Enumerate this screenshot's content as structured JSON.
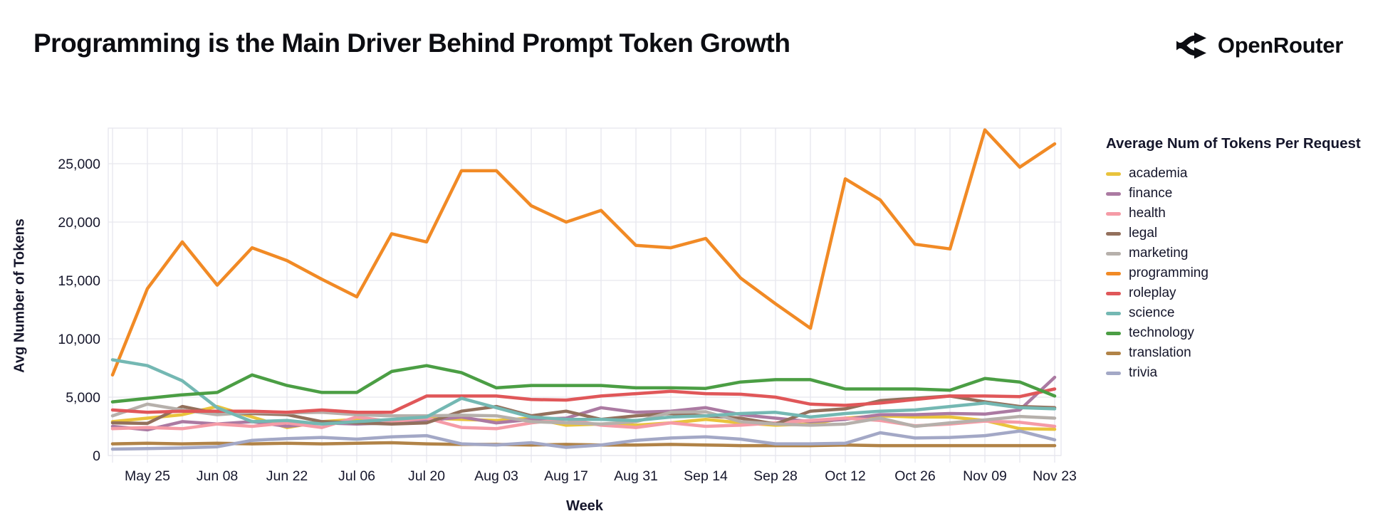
{
  "header": {
    "title": "Programming is the Main Driver Behind Prompt Token Growth",
    "logo_text": "OpenRouter"
  },
  "legend": {
    "title": "Average Num of Tokens Per Request"
  },
  "axes": {
    "xlabel": "Week",
    "ylabel": "Avg Number of Tokens"
  },
  "colors": {
    "grid": "#e6e6ee",
    "axis_text": "#15162b",
    "background": "#ffffff"
  },
  "chart_data": {
    "type": "line",
    "title": "Programming is the Main Driver Behind Prompt Token Growth",
    "xlabel": "Week",
    "ylabel": "Avg Number of Tokens",
    "legend_title": "Average Num of Tokens Per Request",
    "legend_position": "right",
    "grid": true,
    "ylim": [
      0,
      28050
    ],
    "y_ticks": [
      0,
      5000,
      10000,
      15000,
      20000,
      25000
    ],
    "y_tick_labels": [
      "0",
      "5,000",
      "10,000",
      "15,000",
      "20,000",
      "25,000"
    ],
    "x": [
      "May 18",
      "May 25",
      "Jun 01",
      "Jun 08",
      "Jun 15",
      "Jun 22",
      "Jun 29",
      "Jul 06",
      "Jul 13",
      "Jul 20",
      "Jul 27",
      "Aug 03",
      "Aug 10",
      "Aug 17",
      "Aug 24",
      "Aug 31",
      "Sep 07",
      "Sep 14",
      "Sep 21",
      "Sep 28",
      "Oct 05",
      "Oct 12",
      "Oct 19",
      "Oct 26",
      "Nov 02",
      "Nov 09",
      "Nov 16",
      "Nov 23"
    ],
    "x_tick_labels": [
      "May 25",
      "Jun 08",
      "Jun 22",
      "Jul 06",
      "Jul 20",
      "Aug 03",
      "Aug 17",
      "Aug 31",
      "Sep 14",
      "Sep 28",
      "Oct 12",
      "Oct 26",
      "Nov 09",
      "Nov 23"
    ],
    "series": [
      {
        "name": "academia",
        "color": "#e9c33c",
        "values": [
          2900,
          3200,
          3500,
          4200,
          3300,
          2400,
          2900,
          3100,
          3000,
          3200,
          3100,
          3000,
          3200,
          2600,
          2700,
          2600,
          2800,
          3100,
          2800,
          2600,
          2700,
          3200,
          3400,
          3300,
          3300,
          3000,
          2300,
          2250
        ]
      },
      {
        "name": "finance",
        "color": "#ab7aa2",
        "values": [
          2500,
          2200,
          2900,
          2700,
          2900,
          2500,
          2800,
          2700,
          2800,
          3000,
          3300,
          2800,
          3100,
          3200,
          4100,
          3700,
          3800,
          4100,
          3500,
          3200,
          2900,
          3100,
          3500,
          3500,
          3600,
          3550,
          3900,
          6700
        ]
      },
      {
        "name": "health",
        "color": "#f59ba6",
        "values": [
          2300,
          2400,
          2300,
          2700,
          2500,
          2800,
          2400,
          3300,
          2900,
          3200,
          2400,
          2300,
          2800,
          3100,
          2600,
          2400,
          2800,
          2500,
          2600,
          2800,
          3000,
          3200,
          3000,
          2550,
          2700,
          2950,
          2850,
          2500
        ]
      },
      {
        "name": "legal",
        "color": "#93705c",
        "values": [
          2800,
          2750,
          4200,
          3600,
          3600,
          3500,
          2900,
          2800,
          2700,
          2800,
          3800,
          4200,
          3400,
          3800,
          3100,
          3400,
          3600,
          3400,
          3200,
          2700,
          3800,
          4000,
          4700,
          4900,
          5100,
          4600,
          4200,
          4100
        ]
      },
      {
        "name": "marketing",
        "color": "#b6b0ab",
        "values": [
          3400,
          4400,
          3900,
          3500,
          3700,
          3650,
          3700,
          3500,
          3400,
          3400,
          3450,
          3400,
          2900,
          2800,
          2700,
          2900,
          3700,
          3750,
          2900,
          2700,
          2600,
          2700,
          3200,
          2500,
          2800,
          3050,
          3350,
          3200
        ]
      },
      {
        "name": "programming",
        "color": "#f18a25",
        "values": [
          6900,
          14300,
          18300,
          14600,
          17800,
          16700,
          15100,
          13600,
          19000,
          18300,
          24400,
          24400,
          21400,
          20000,
          21000,
          18000,
          17800,
          18600,
          15200,
          13000,
          10900,
          23700,
          21900,
          18100,
          17700,
          27900,
          24700,
          26700
        ]
      },
      {
        "name": "roleplay",
        "color": "#e05759",
        "values": [
          3900,
          3700,
          3800,
          3800,
          3800,
          3700,
          3900,
          3700,
          3700,
          5100,
          5100,
          5100,
          4800,
          4750,
          5100,
          5300,
          5500,
          5300,
          5250,
          5000,
          4400,
          4300,
          4500,
          4800,
          5100,
          5100,
          5050,
          5700
        ]
      },
      {
        "name": "science",
        "color": "#74b8b3",
        "values": [
          8200,
          7700,
          6400,
          4100,
          2900,
          3000,
          2700,
          2900,
          3100,
          3300,
          4900,
          4100,
          3300,
          3100,
          3100,
          3000,
          3300,
          3400,
          3600,
          3700,
          3300,
          3600,
          3800,
          3900,
          4200,
          4500,
          4100,
          4000
        ]
      },
      {
        "name": "technology",
        "color": "#4b9e44",
        "values": [
          4600,
          4900,
          5200,
          5400,
          6900,
          6000,
          5400,
          5400,
          7200,
          7700,
          7100,
          5800,
          6000,
          6000,
          6000,
          5800,
          5800,
          5750,
          6300,
          6500,
          6500,
          5700,
          5700,
          5700,
          5600,
          6600,
          6300,
          5100
        ]
      },
      {
        "name": "translation",
        "color": "#b18347",
        "values": [
          1000,
          1050,
          1000,
          1050,
          1000,
          1050,
          1000,
          1050,
          1100,
          1000,
          950,
          950,
          900,
          950,
          900,
          900,
          950,
          900,
          850,
          850,
          850,
          900,
          850,
          850,
          850,
          850,
          850,
          850
        ]
      },
      {
        "name": "trivia",
        "color": "#a3a8c6",
        "values": [
          550,
          600,
          650,
          750,
          1300,
          1450,
          1550,
          1400,
          1600,
          1700,
          1000,
          900,
          1100,
          700,
          900,
          1300,
          1500,
          1600,
          1400,
          1000,
          1000,
          1050,
          1950,
          1500,
          1550,
          1700,
          2100,
          1350
        ]
      }
    ]
  }
}
